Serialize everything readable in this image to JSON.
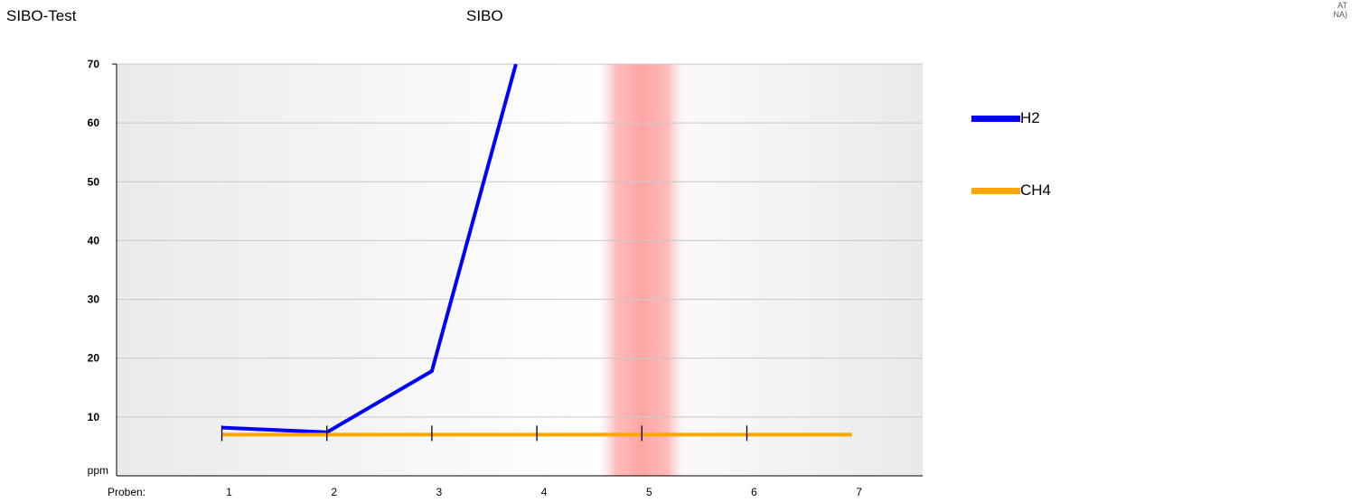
{
  "header": {
    "title_left": "SIBO-Test",
    "title_center": "SIBO"
  },
  "corner": {
    "line1": "AT",
    "line2": "NA)"
  },
  "colors": {
    "h2": "#0000ff",
    "ch4": "#ffa500",
    "grid": "#c8c8c8",
    "highlight": "#ff9999"
  },
  "chart_data": {
    "type": "line",
    "ylabel": "ppm",
    "xlabel": "Proben:",
    "ylim": [
      0,
      70
    ],
    "yticks": [
      10,
      20,
      30,
      40,
      50,
      60,
      70
    ],
    "x": [
      1,
      2,
      3,
      4,
      5,
      6,
      7
    ],
    "xlim": [
      0,
      7.6
    ],
    "highlight_x": 5,
    "grid": true,
    "legend_position": "right",
    "series": [
      {
        "name": "H2",
        "color": "#0000ff",
        "x": [
          1,
          2,
          3,
          3.8
        ],
        "values": [
          8.2,
          7.4,
          17.8,
          70
        ]
      },
      {
        "name": "CH4",
        "color": "#ffa500",
        "x": [
          1,
          2,
          3,
          4,
          5,
          6,
          7
        ],
        "values": [
          7,
          7,
          7,
          7,
          7,
          7,
          7
        ]
      }
    ]
  }
}
